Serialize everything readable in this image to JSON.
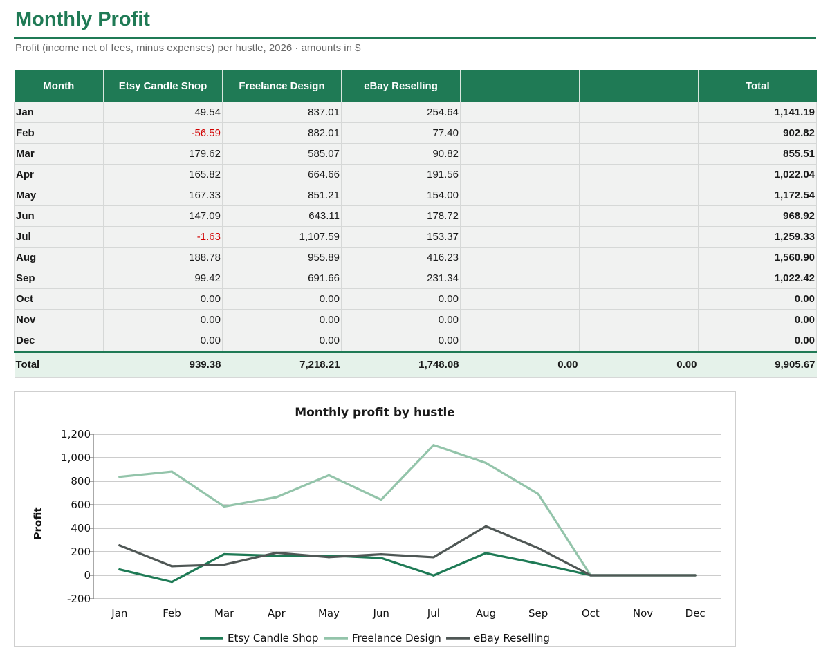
{
  "page": {
    "title": "Monthly Profit",
    "subtitle": "Profit (income net of fees, minus expenses) per hustle, 2026  ·  amounts in $"
  },
  "table": {
    "headers": [
      "Month",
      "Etsy Candle Shop",
      "Freelance Design",
      "eBay Reselling",
      "",
      "",
      "Total"
    ],
    "rows": [
      {
        "month": "Jan",
        "cells": [
          "49.54",
          "837.01",
          "254.64",
          "",
          ""
        ],
        "total": "1,141.19"
      },
      {
        "month": "Feb",
        "cells": [
          "-56.59",
          "882.01",
          "77.40",
          "",
          ""
        ],
        "total": "902.82"
      },
      {
        "month": "Mar",
        "cells": [
          "179.62",
          "585.07",
          "90.82",
          "",
          ""
        ],
        "total": "855.51"
      },
      {
        "month": "Apr",
        "cells": [
          "165.82",
          "664.66",
          "191.56",
          "",
          ""
        ],
        "total": "1,022.04"
      },
      {
        "month": "May",
        "cells": [
          "167.33",
          "851.21",
          "154.00",
          "",
          ""
        ],
        "total": "1,172.54"
      },
      {
        "month": "Jun",
        "cells": [
          "147.09",
          "643.11",
          "178.72",
          "",
          ""
        ],
        "total": "968.92"
      },
      {
        "month": "Jul",
        "cells": [
          "-1.63",
          "1,107.59",
          "153.37",
          "",
          ""
        ],
        "total": "1,259.33"
      },
      {
        "month": "Aug",
        "cells": [
          "188.78",
          "955.89",
          "416.23",
          "",
          ""
        ],
        "total": "1,560.90"
      },
      {
        "month": "Sep",
        "cells": [
          "99.42",
          "691.66",
          "231.34",
          "",
          ""
        ],
        "total": "1,022.42"
      },
      {
        "month": "Oct",
        "cells": [
          "0.00",
          "0.00",
          "0.00",
          "",
          ""
        ],
        "total": "0.00"
      },
      {
        "month": "Nov",
        "cells": [
          "0.00",
          "0.00",
          "0.00",
          "",
          ""
        ],
        "total": "0.00"
      },
      {
        "month": "Dec",
        "cells": [
          "0.00",
          "0.00",
          "0.00",
          "",
          ""
        ],
        "total": "0.00"
      }
    ],
    "total_row": {
      "label": "Total",
      "cells": [
        "939.38",
        "7,218.21",
        "1,748.08",
        "0.00",
        "0.00"
      ],
      "total": "9,905.67"
    }
  },
  "colors": {
    "accent": "#1f7a55",
    "negative": "#d10000",
    "total_row_bg": "#e5f2ea",
    "etsy": "#1e7a55",
    "freelance": "#93c4aa",
    "ebay": "#4f5755"
  },
  "chart_data": {
    "type": "line",
    "title": "Monthly profit by hustle",
    "xlabel": "",
    "ylabel": "Profit",
    "categories": [
      "Jan",
      "Feb",
      "Mar",
      "Apr",
      "May",
      "Jun",
      "Jul",
      "Aug",
      "Sep",
      "Oct",
      "Nov",
      "Dec"
    ],
    "ylim": [
      -200,
      1200
    ],
    "yticks": [
      -200,
      0,
      200,
      400,
      600,
      800,
      1000,
      1200
    ],
    "ytick_labels": [
      "-200",
      "0",
      "200",
      "400",
      "600",
      "800",
      "1,000",
      "1,200"
    ],
    "grid": true,
    "legend_position": "bottom",
    "series": [
      {
        "name": "Etsy Candle Shop",
        "color": "#1e7a55",
        "values": [
          49.54,
          -56.59,
          179.62,
          165.82,
          167.33,
          147.09,
          -1.63,
          188.78,
          99.42,
          0,
          0,
          0
        ]
      },
      {
        "name": "Freelance Design",
        "color": "#93c4aa",
        "values": [
          837.01,
          882.01,
          585.07,
          664.66,
          851.21,
          643.11,
          1107.59,
          955.89,
          691.66,
          0,
          0,
          0
        ]
      },
      {
        "name": "eBay Reselling",
        "color": "#4f5755",
        "values": [
          254.64,
          77.4,
          90.82,
          191.56,
          154.0,
          178.72,
          153.37,
          416.23,
          231.34,
          0,
          0,
          0
        ]
      }
    ]
  }
}
